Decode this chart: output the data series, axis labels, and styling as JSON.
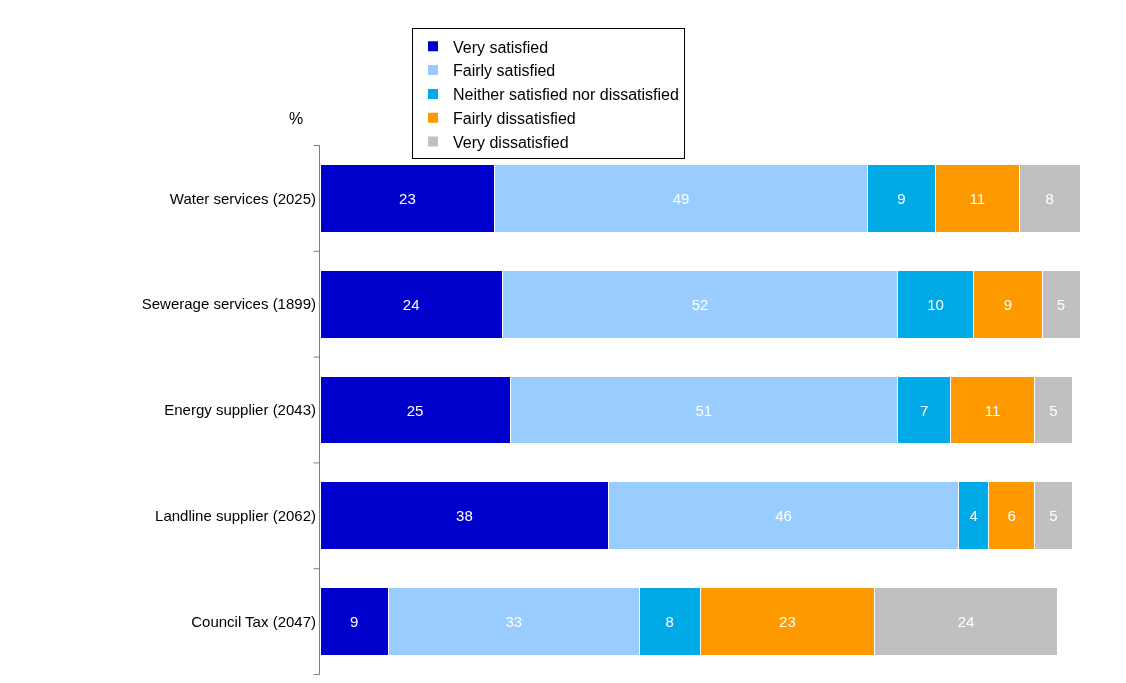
{
  "chart_data": {
    "type": "bar",
    "orientation": "horizontal",
    "stacked": true,
    "ylabel": "%",
    "categories": [
      "Water services (2025)",
      "Sewerage services (1899)",
      "Energy supplier (2043)",
      "Landline supplier (2062)",
      "Council Tax (2047)"
    ],
    "series": [
      {
        "name": "Very satisfied",
        "color": "#0000cc",
        "values": [
          23,
          24,
          25,
          38,
          9
        ]
      },
      {
        "name": "Fairly satisfied",
        "color": "#99ccff",
        "values": [
          49,
          52,
          51,
          46,
          33
        ]
      },
      {
        "name": "Neither satisfied nor dissatisfied",
        "color": "#00aae6",
        "values": [
          9,
          10,
          7,
          4,
          8
        ]
      },
      {
        "name": "Fairly dissatisfied",
        "color": "#ff9900",
        "values": [
          11,
          9,
          11,
          6,
          23
        ]
      },
      {
        "name": "Very dissatisfied",
        "color": "#c0c0c0",
        "values": [
          8,
          5,
          5,
          5,
          24
        ]
      }
    ],
    "data_labels": true,
    "legend": "top",
    "tick_labels": "y"
  }
}
